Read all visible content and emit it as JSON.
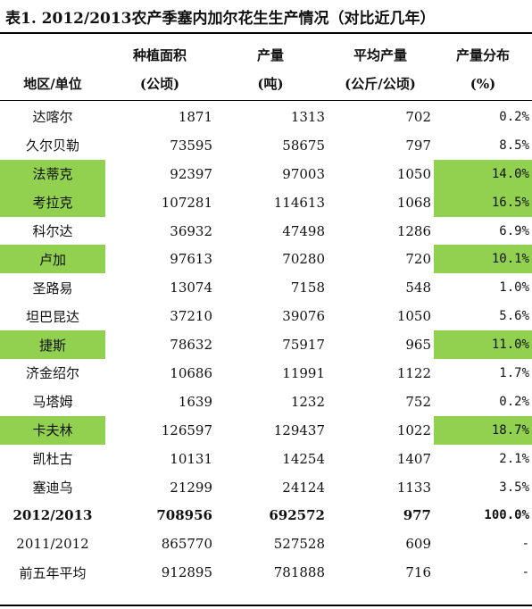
{
  "title": "表1. 2012/2013农产季塞内加尔花生生产情况（对比近几年）",
  "colors": {
    "highlight": "#92d050"
  },
  "headers": {
    "region": [
      "",
      "地区/单位"
    ],
    "area": [
      "种植面积",
      "(公顷)"
    ],
    "production": [
      "产量",
      "(吨)"
    ],
    "yield": [
      "平均产量",
      "(公斤/公顷)"
    ],
    "share": [
      "产量分布",
      "(%)"
    ]
  },
  "rows": [
    {
      "region": "达喀尔",
      "area": "1871",
      "production": "1313",
      "yield": "702",
      "share": "0.2%",
      "highlight": false,
      "bold": false
    },
    {
      "region": "久尔贝勒",
      "area": "73595",
      "production": "58675",
      "yield": "797",
      "share": "8.5%",
      "highlight": false,
      "bold": false
    },
    {
      "region": "法蒂克",
      "area": "92397",
      "production": "97003",
      "yield": "1050",
      "share": "14.0%",
      "highlight": true,
      "bold": false
    },
    {
      "region": "考拉克",
      "area": "107281",
      "production": "114613",
      "yield": "1068",
      "share": "16.5%",
      "highlight": true,
      "bold": false
    },
    {
      "region": "科尔达",
      "area": "36932",
      "production": "47498",
      "yield": "1286",
      "share": "6.9%",
      "highlight": false,
      "bold": false
    },
    {
      "region": "卢加",
      "area": "97613",
      "production": "70280",
      "yield": "720",
      "share": "10.1%",
      "highlight": true,
      "bold": false
    },
    {
      "region": "圣路易",
      "area": "13074",
      "production": "7158",
      "yield": "548",
      "share": "1.0%",
      "highlight": false,
      "bold": false
    },
    {
      "region": "坦巴昆达",
      "area": "37210",
      "production": "39076",
      "yield": "1050",
      "share": "5.6%",
      "highlight": false,
      "bold": false
    },
    {
      "region": "捷斯",
      "area": "78632",
      "production": "75917",
      "yield": "965",
      "share": "11.0%",
      "highlight": true,
      "bold": false
    },
    {
      "region": "济金绍尔",
      "area": "10686",
      "production": "11991",
      "yield": "1122",
      "share": "1.7%",
      "highlight": false,
      "bold": false
    },
    {
      "region": "马塔姆",
      "area": "1639",
      "production": "1232",
      "yield": "752",
      "share": "0.2%",
      "highlight": false,
      "bold": false
    },
    {
      "region": "卡夫林",
      "area": "126597",
      "production": "129437",
      "yield": "1022",
      "share": "18.7%",
      "highlight": true,
      "bold": false
    },
    {
      "region": "凯杜古",
      "area": "10131",
      "production": "14254",
      "yield": "1407",
      "share": "2.1%",
      "highlight": false,
      "bold": false
    },
    {
      "region": "塞迪乌",
      "area": "21299",
      "production": "24124",
      "yield": "1133",
      "share": "3.5%",
      "highlight": false,
      "bold": false
    },
    {
      "region": "2012/2013",
      "area": "708956",
      "production": "692572",
      "yield": "977",
      "share": "100.0%",
      "highlight": false,
      "bold": true
    },
    {
      "region": "2011/2012",
      "area": "865770",
      "production": "527528",
      "yield": "609",
      "share": "-",
      "highlight": false,
      "bold": false
    },
    {
      "region": "前五年平均",
      "area": "912895",
      "production": "781888",
      "yield": "716",
      "share": "-",
      "highlight": false,
      "bold": false
    }
  ]
}
